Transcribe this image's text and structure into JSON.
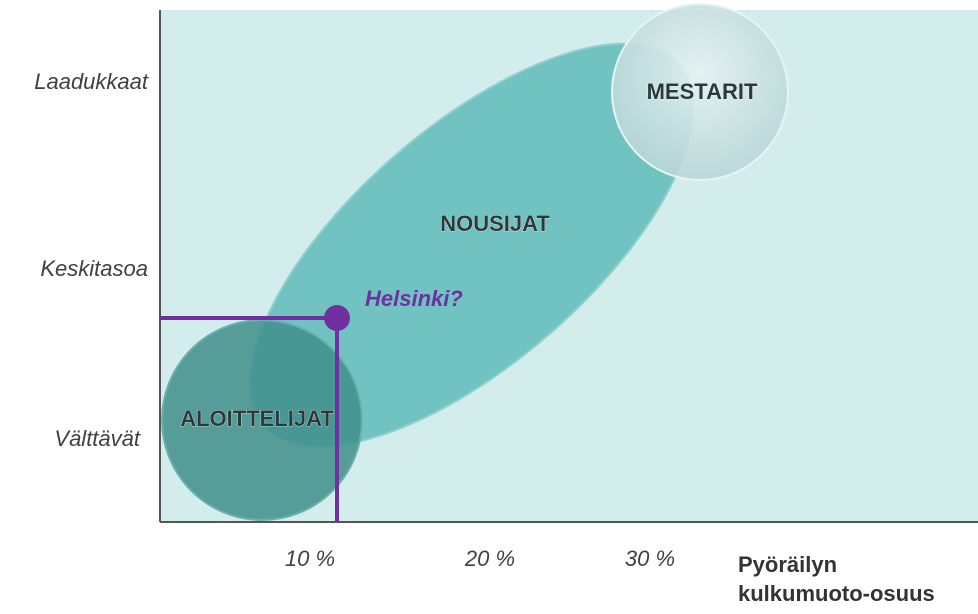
{
  "y_axis": {
    "labels": [
      "Laadukkaat",
      "Keskitasoa",
      "Välttävät"
    ]
  },
  "x_axis": {
    "labels": [
      "10 %",
      "20 %",
      "30 %"
    ],
    "title": [
      "Pyöräilyn",
      "kulkumuoto-osuus"
    ]
  },
  "regions": [
    {
      "label": "MESTARIT"
    },
    {
      "label": "NOUSIJAT"
    },
    {
      "label": "ALOITTELIJAT"
    }
  ],
  "point": {
    "label": "Helsinki?"
  }
}
